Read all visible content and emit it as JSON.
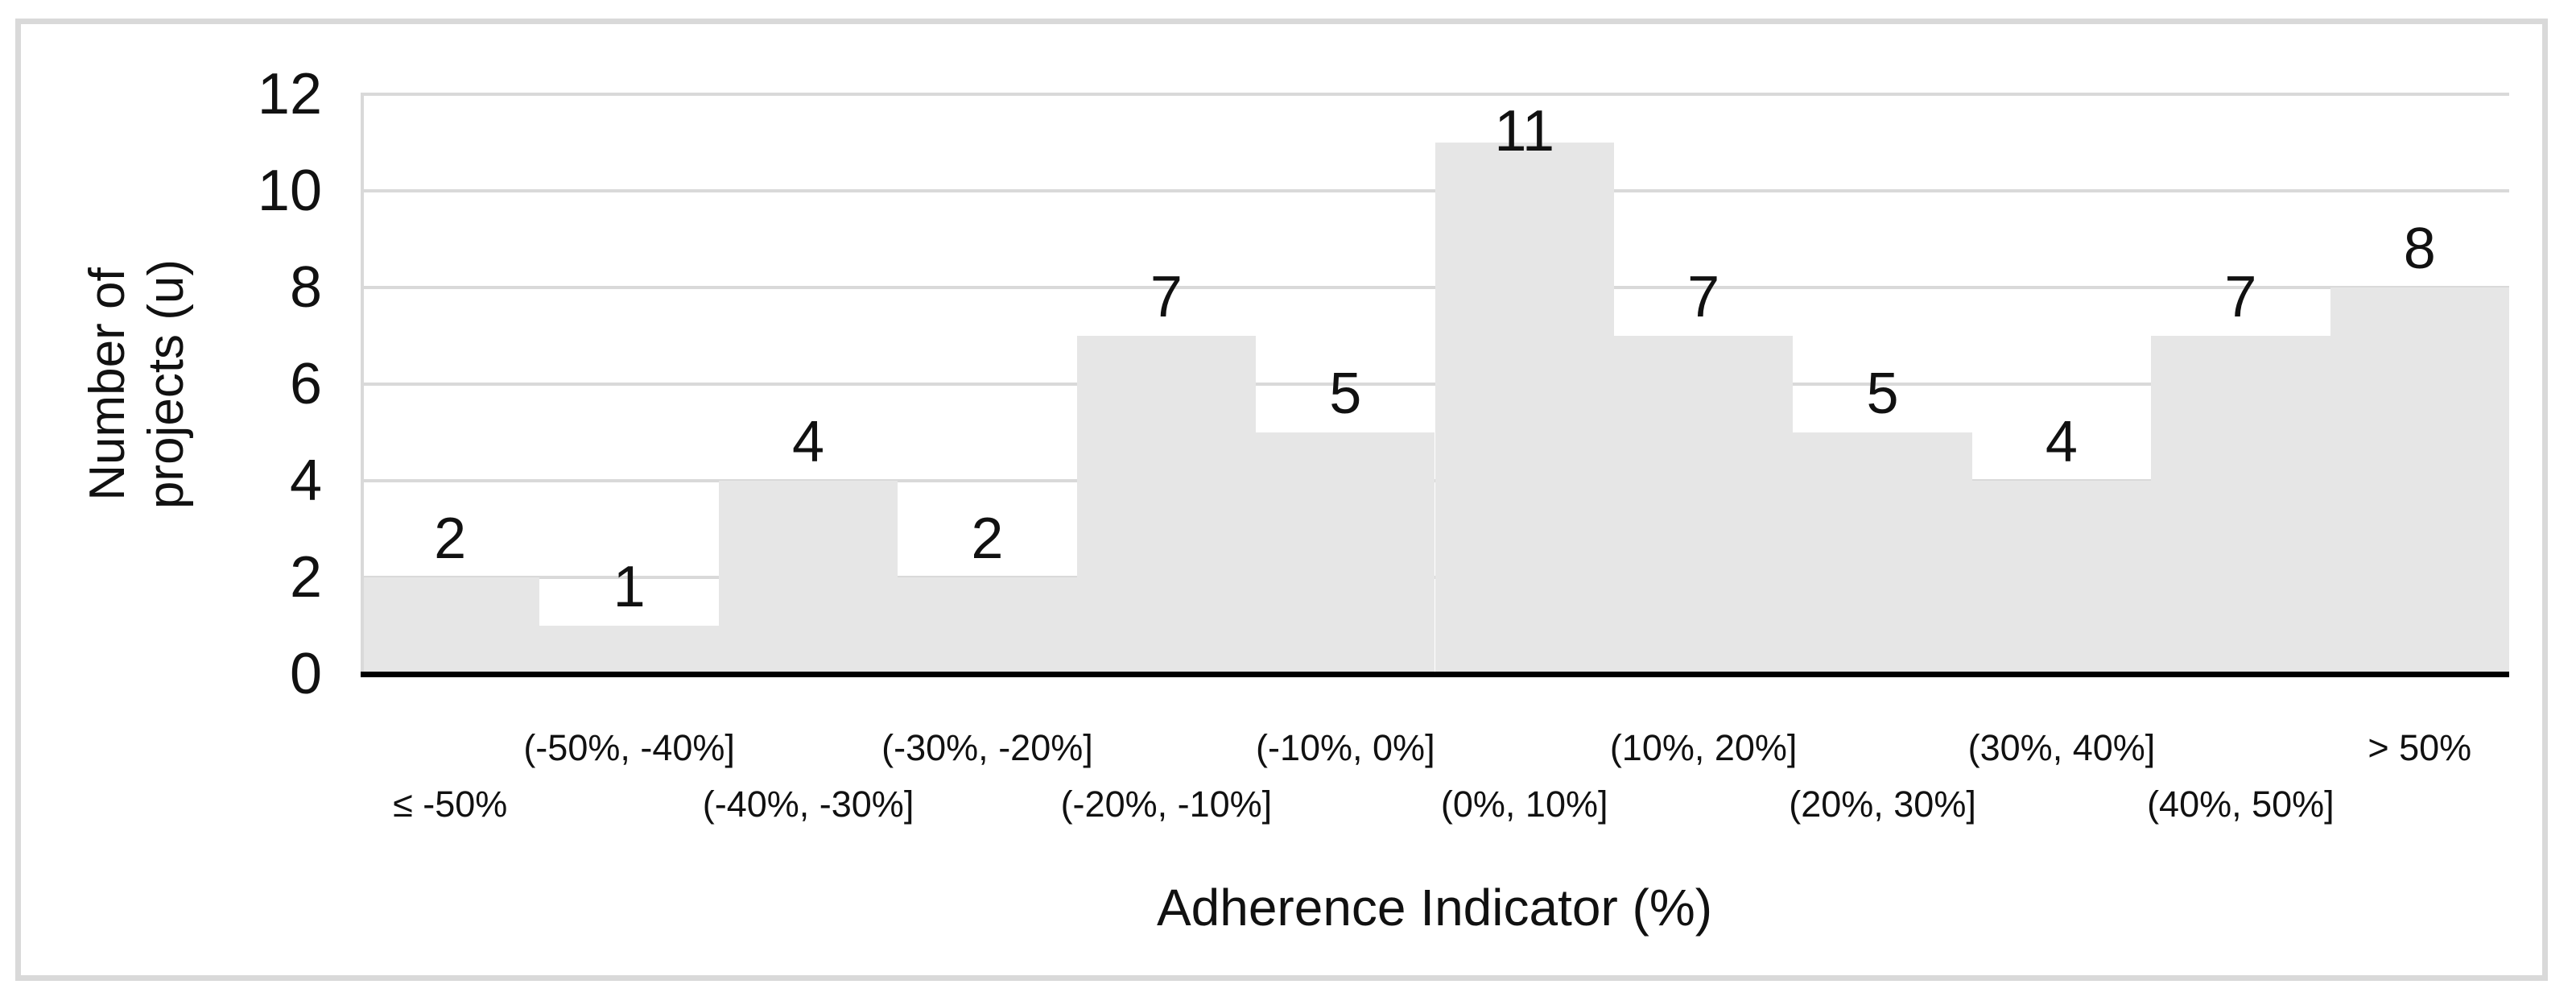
{
  "figure": {
    "background": "#ffffff",
    "frame_border_color": "#d9d9d9"
  },
  "chart_data": {
    "type": "bar",
    "subtype": "histogram",
    "title": "",
    "categories": [
      "≤ -50%",
      "(-50%, -40%]",
      "(-40%, -30%]",
      "(-30%, -20%]",
      "(-20%, -10%]",
      "(-10%, 0%]",
      "(0%, 10%]",
      "(10%, 20%]",
      "(20%, 30%]",
      "(30%, 40%]",
      "(40%, 50%]",
      "> 50%"
    ],
    "values": [
      2,
      1,
      4,
      2,
      7,
      5,
      11,
      7,
      5,
      4,
      7,
      8
    ],
    "xlabel": "Adherence Indicator (%)",
    "ylabel_lines": [
      "Number of",
      "projects (u)"
    ],
    "ylim": [
      0,
      12
    ],
    "yticks": [
      0,
      2,
      4,
      6,
      8,
      10,
      12
    ],
    "grid": "horizontal-major",
    "legend": "none",
    "data_labels": "outside-end",
    "bar_fill": "#e6e6e6",
    "gridline_color": "#d9d9d9",
    "axis_line_color": "#000000",
    "text_color": "#111111"
  }
}
